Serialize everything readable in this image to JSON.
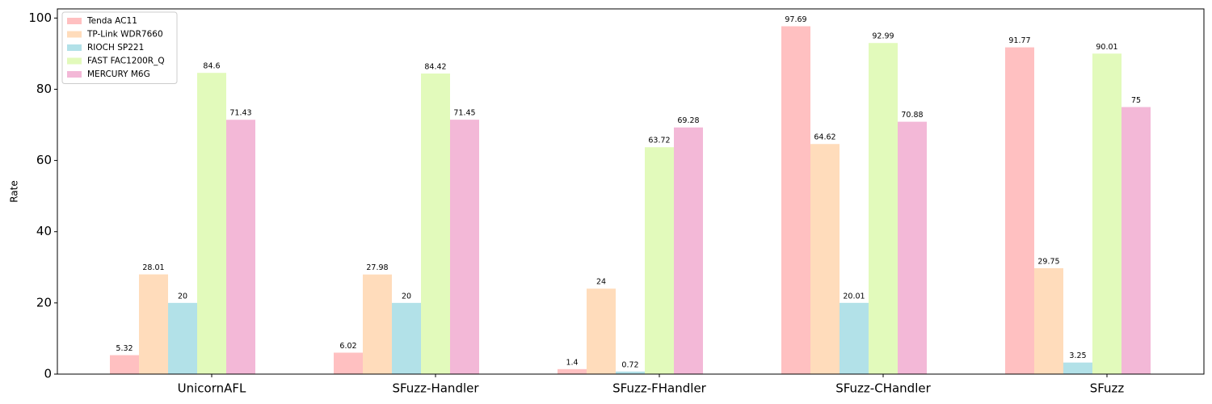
{
  "chart_data": {
    "type": "bar",
    "y_label": "Rate",
    "categories": [
      "UnicornAFL",
      "SFuzz-Handler",
      "SFuzz-FHandler",
      "SFuzz-CHandler",
      "SFuzz"
    ],
    "series": [
      {
        "name": "Tenda AC11",
        "color": "#ffc0c1",
        "values": [
          5.32,
          6.02,
          1.4,
          97.69,
          91.77
        ]
      },
      {
        "name": "TP-Link WDR7660",
        "color": "#ffdcbb",
        "values": [
          28.01,
          27.98,
          24,
          64.62,
          29.75
        ]
      },
      {
        "name": "RIOCH SP221",
        "color": "#b2e1e8",
        "values": [
          20,
          20,
          0.72,
          20.01,
          3.25
        ]
      },
      {
        "name": "FAST FAC1200R_Q",
        "color": "#e2fabb",
        "values": [
          84.6,
          84.42,
          63.72,
          92.99,
          90.01
        ]
      },
      {
        "name": "MERCURY M6G",
        "color": "#f3b8d7",
        "values": [
          71.43,
          71.45,
          69.28,
          70.88,
          75
        ]
      }
    ],
    "ylim": [
      0,
      102.57
    ],
    "yticks": [
      0,
      20,
      40,
      60,
      80,
      100
    ],
    "grid": false,
    "legend": "upper left"
  }
}
